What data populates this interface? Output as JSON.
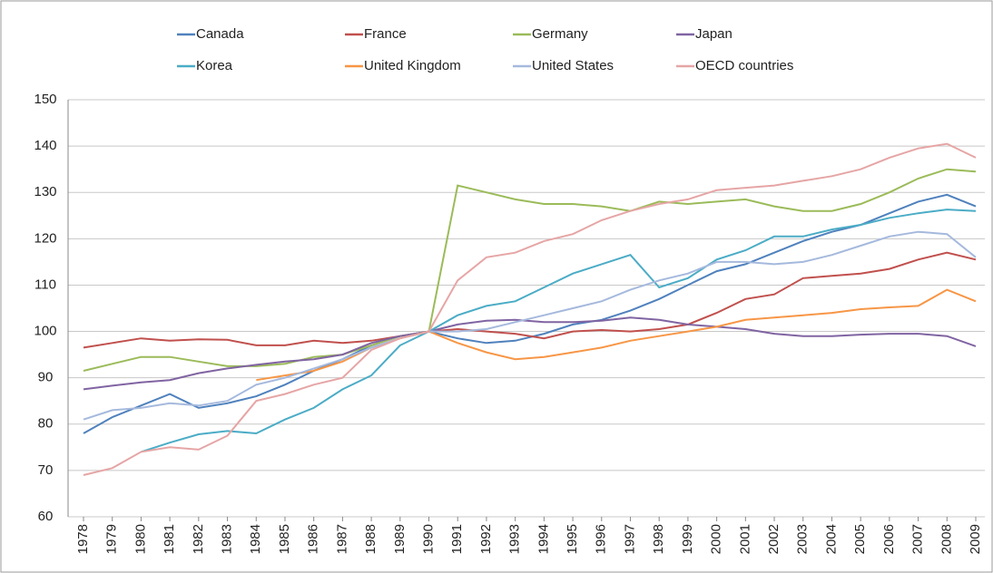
{
  "chart_data": {
    "type": "line",
    "categories": [
      "1978",
      "1979",
      "1980",
      "1981",
      "1982",
      "1983",
      "1984",
      "1985",
      "1986",
      "1987",
      "1988",
      "1989",
      "1990",
      "1991",
      "1992",
      "1993",
      "1994",
      "1995",
      "1996",
      "1997",
      "1998",
      "1999",
      "2000",
      "2001",
      "2002",
      "2003",
      "2004",
      "2005",
      "2006",
      "2007",
      "2008",
      "2009"
    ],
    "series": [
      {
        "name": "Canada",
        "color": "#4f81bd",
        "values": [
          78,
          81.5,
          84,
          86.5,
          83.5,
          84.5,
          86,
          88.5,
          91.5,
          94,
          97,
          99,
          100,
          98.5,
          97.5,
          98,
          99.5,
          101.5,
          102.5,
          104.5,
          107,
          110,
          113,
          114.5,
          117,
          119.5,
          121.5,
          123,
          125.5,
          128,
          129.5,
          127
        ]
      },
      {
        "name": "France",
        "color": "#c0504d",
        "values": [
          96.5,
          97.5,
          98.5,
          98,
          98.3,
          98.2,
          97,
          97,
          98,
          97.5,
          98,
          99,
          100,
          100.5,
          100,
          99.5,
          98.5,
          100,
          100.3,
          100,
          100.5,
          101.5,
          104,
          107,
          108,
          111.5,
          112,
          112.5,
          113.5,
          115.5,
          117,
          115.5
        ]
      },
      {
        "name": "Germany",
        "color": "#9bbb59",
        "values": [
          91.5,
          93,
          94.5,
          94.5,
          93.5,
          92.5,
          92.5,
          93,
          94.5,
          95,
          97,
          99,
          100,
          131.5,
          130,
          128.5,
          127.5,
          127.5,
          127,
          126,
          128,
          127.5,
          128,
          128.5,
          127,
          126,
          126,
          127.5,
          130,
          133,
          135,
          134.5
        ]
      },
      {
        "name": "Japan",
        "color": "#8064a2",
        "values": [
          87.5,
          88.3,
          89,
          89.5,
          91,
          92,
          92.8,
          93.5,
          94,
          95,
          97.5,
          99,
          100,
          101.5,
          102.3,
          102.5,
          102,
          102,
          102.3,
          103,
          102.5,
          101.5,
          101,
          100.5,
          99.5,
          99,
          99,
          99.3,
          99.5,
          99.5,
          99,
          96.8
        ]
      },
      {
        "name": "Korea",
        "color": "#4bacc6",
        "values": [
          null,
          null,
          74,
          76,
          77.8,
          78.5,
          78,
          81,
          83.5,
          87.5,
          90.5,
          97,
          100,
          103.5,
          105.5,
          106.5,
          109.5,
          112.5,
          114.5,
          116.5,
          109.5,
          111.5,
          115.5,
          117.5,
          120.5,
          120.5,
          122,
          123,
          124.5,
          125.5,
          126.3,
          126
        ]
      },
      {
        "name": "United Kingdom",
        "color": "#f79646",
        "values": [
          null,
          null,
          null,
          null,
          null,
          null,
          89.5,
          90.5,
          91.5,
          93.5,
          96.5,
          98.5,
          100,
          97.5,
          95.5,
          94,
          94.5,
          95.5,
          96.5,
          98,
          99,
          100,
          101,
          102.5,
          103,
          103.5,
          104,
          104.8,
          105.2,
          105.5,
          109,
          106.5
        ]
      },
      {
        "name": "United States",
        "color": "#a5b9dd",
        "values": [
          81,
          83,
          83.5,
          84.5,
          84,
          85,
          88.5,
          90,
          92,
          94,
          96.5,
          98.5,
          100,
          100,
          100.5,
          102,
          103.5,
          105,
          106.5,
          109,
          111,
          112.5,
          115,
          115,
          114.5,
          115,
          116.5,
          118.5,
          120.5,
          121.5,
          121,
          116
        ]
      },
      {
        "name": "OECD countries",
        "color": "#e6a5a5",
        "values": [
          69,
          70.5,
          74,
          75,
          74.5,
          77.5,
          85,
          86.5,
          88.5,
          90,
          96,
          98.5,
          100,
          111,
          116,
          117,
          119.5,
          121,
          124,
          126,
          127.5,
          128.5,
          130.5,
          131,
          131.5,
          132.5,
          133.5,
          135,
          137.5,
          139.5,
          140.5,
          137.5
        ]
      }
    ],
    "ylim": [
      60,
      150
    ],
    "yticks": [
      60,
      70,
      80,
      90,
      100,
      110,
      120,
      130,
      140,
      150
    ],
    "grid": true,
    "legend": "top"
  }
}
